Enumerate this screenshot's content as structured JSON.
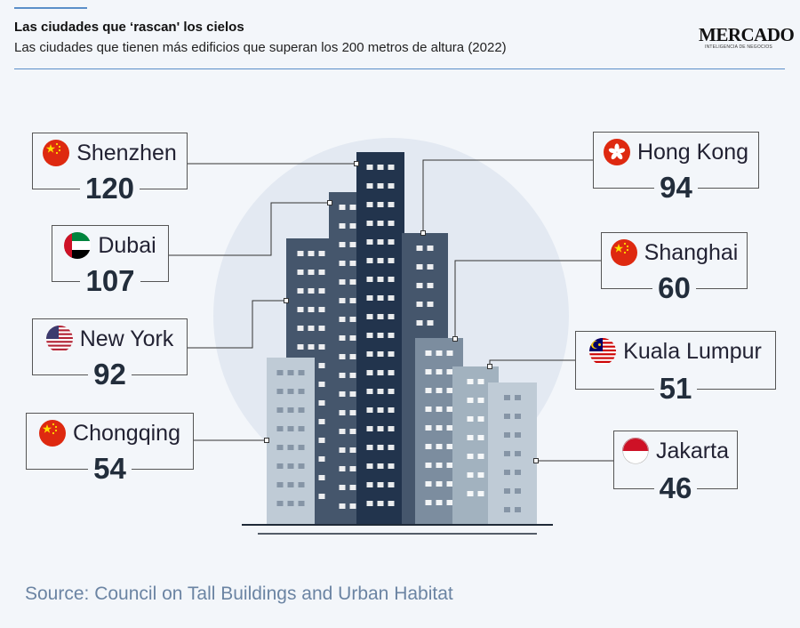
{
  "header": {
    "title": "Las ciudades que ‘rascan' los cielos",
    "subtitle": "Las ciudades que tienen más edificios que superan los 200 metros de altura (2022)"
  },
  "logo": {
    "word": "MERCADO",
    "tagline": "INTELIGENCIA DE NEGOCIOS"
  },
  "source": "Source: Council on Tall Buildings and Urban Habitat",
  "colors": {
    "background": "#f3f6fa",
    "circle": "#e3e9f2",
    "building_dark": "#22344d",
    "building_mid": "#45566c",
    "building_steel": "#7c8d9f",
    "building_light": "#bfcbd6",
    "accent_rule": "#5b8fc9"
  },
  "chart_data": {
    "type": "bar",
    "title": "Las ciudades que ‘rascan' los cielos",
    "subtitle": "Las ciudades que tienen más edificios que superan los 200 metros de altura (2022)",
    "categories": [
      "Shenzhen",
      "Dubai",
      "New York",
      "Chongqing",
      "Hong Kong",
      "Shanghai",
      "Kuala Lumpur",
      "Jakarta"
    ],
    "values": [
      120,
      107,
      92,
      54,
      94,
      60,
      51,
      46
    ],
    "flags": [
      "china-flag-icon",
      "uae-flag-icon",
      "usa-flag-icon",
      "china-flag-icon",
      "hong-kong-flag-icon",
      "china-flag-icon",
      "malaysia-flag-icon",
      "indonesia-flag-icon"
    ],
    "display_values": [
      "120",
      "107",
      "92",
      "54",
      "94",
      "60",
      "51",
      "46"
    ],
    "source": "Source: Council on Tall Buildings and Urban Habitat"
  }
}
